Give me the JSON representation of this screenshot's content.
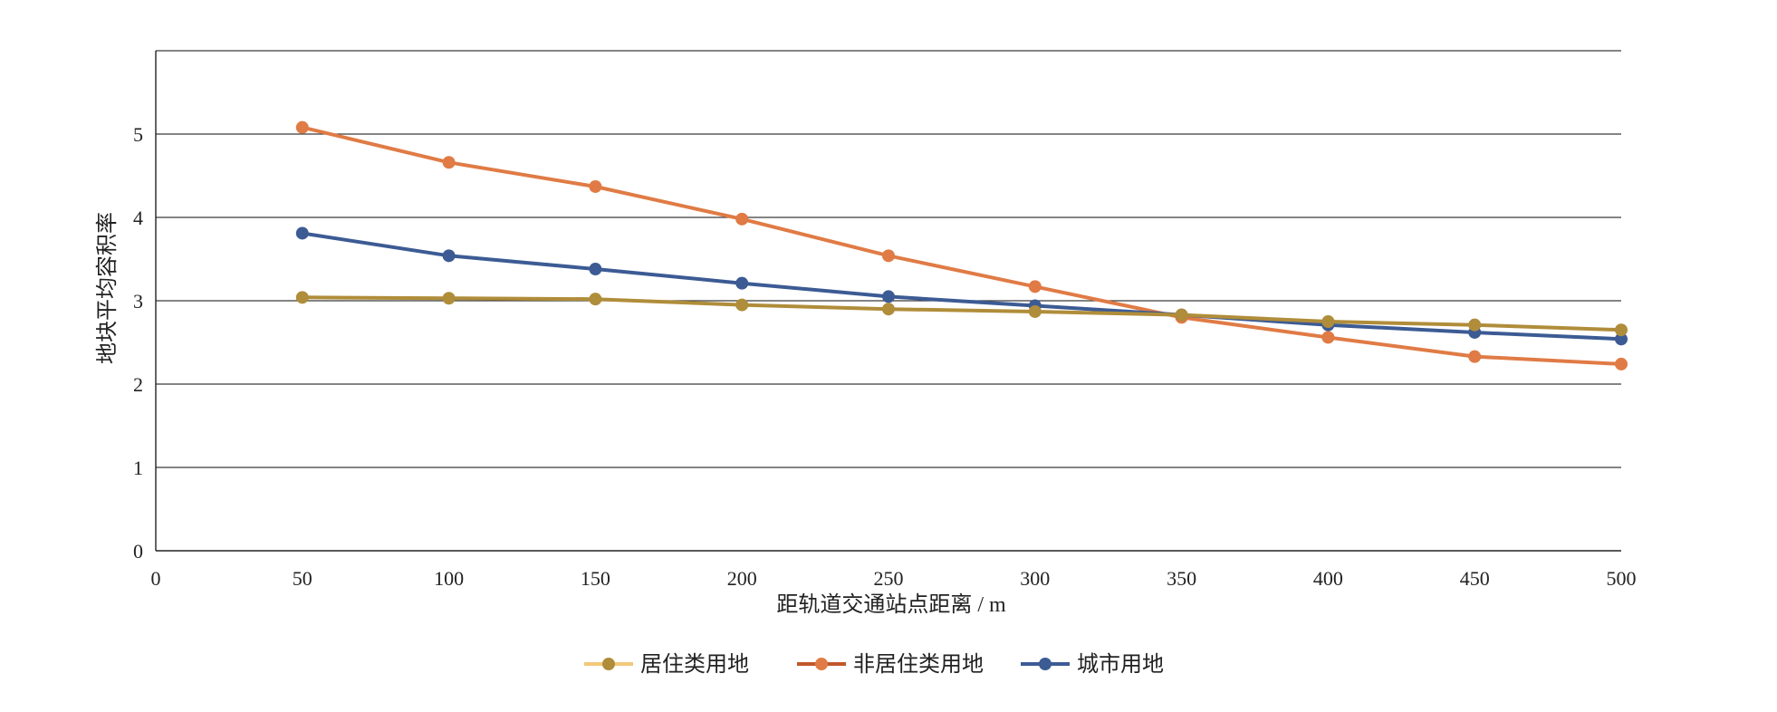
{
  "chart_data": {
    "type": "line",
    "x": [
      50,
      100,
      150,
      200,
      250,
      300,
      350,
      400,
      450,
      500
    ],
    "xlabel": "距轨道交通站点距离 / m",
    "ylabel": "地块平均容积率",
    "xlim": [
      0,
      500
    ],
    "ylim": [
      0,
      6
    ],
    "x_ticks": [
      "0",
      "50",
      "100",
      "150",
      "200",
      "250",
      "300",
      "350",
      "400",
      "450",
      "500"
    ],
    "y_ticks": [
      "0",
      "1",
      "2",
      "3",
      "4",
      "5"
    ],
    "grid": "horizontal",
    "legend_position": "bottom",
    "series": [
      {
        "name": "居住类用地",
        "color": "#B08D3A",
        "legend_line_color": "#F2C879",
        "values": [
          3.04,
          3.03,
          3.02,
          2.95,
          2.9,
          2.87,
          2.83,
          2.75,
          2.71,
          2.65
        ]
      },
      {
        "name": "非居住类用地",
        "color": "#E07B45",
        "legend_line_color": "#C0572A",
        "values": [
          5.08,
          4.66,
          4.37,
          3.98,
          3.54,
          3.17,
          2.8,
          2.56,
          2.33,
          2.24
        ]
      },
      {
        "name": "城市用地",
        "color": "#3C5B94",
        "legend_line_color": "#3C5B94",
        "values": [
          3.81,
          3.54,
          3.38,
          3.21,
          3.05,
          2.94,
          2.83,
          2.71,
          2.62,
          2.54
        ]
      }
    ],
    "draw_order": [
      1,
      2,
      0
    ]
  }
}
